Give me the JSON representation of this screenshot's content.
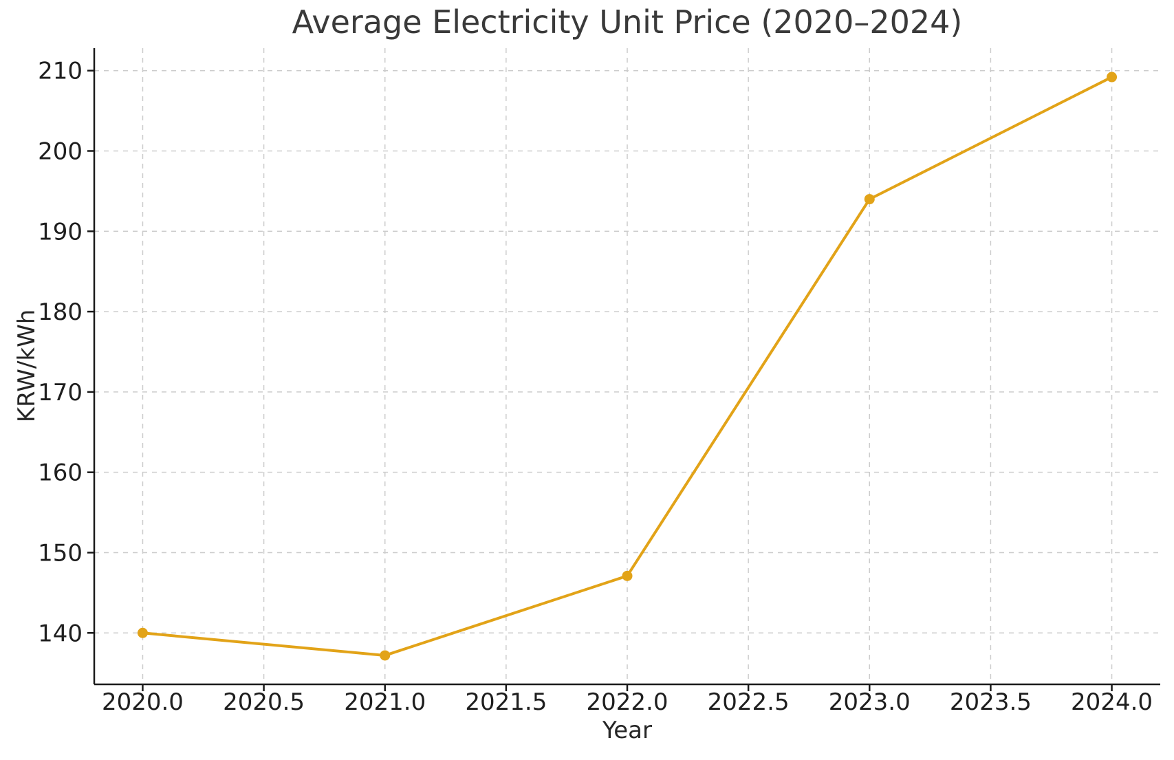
{
  "chart_data": {
    "type": "line",
    "title": "Average Electricity Unit Price (2020–2024)",
    "xlabel": "Year",
    "ylabel": "KRW/kWh",
    "x": [
      2020,
      2021,
      2022,
      2023,
      2024
    ],
    "y": [
      140.0,
      137.2,
      147.1,
      194.0,
      209.2
    ],
    "xlim": [
      2019.8,
      2024.2
    ],
    "ylim": [
      133.6,
      212.8
    ],
    "xticks": [
      2020.0,
      2020.5,
      2021.0,
      2021.5,
      2022.0,
      2022.5,
      2023.0,
      2023.5,
      2024.0
    ],
    "xtick_labels": [
      "2020.0",
      "2020.5",
      "2021.0",
      "2021.5",
      "2022.0",
      "2022.5",
      "2023.0",
      "2023.5",
      "2024.0"
    ],
    "yticks": [
      140,
      150,
      160,
      170,
      180,
      190,
      200,
      210
    ],
    "ytick_labels": [
      "140",
      "150",
      "160",
      "170",
      "180",
      "190",
      "200",
      "210"
    ],
    "grid": true,
    "grid_style": "dashed",
    "legend": "none",
    "marker": "circle",
    "colors": {
      "line": "#E2A318",
      "marker": "#E2A318",
      "grid": "#cccccc",
      "spine": "#1a1a1a",
      "tick": "#1a1a1a",
      "title_text": "#3a3a3a",
      "label_text": "#262626",
      "background": "#ffffff"
    }
  }
}
